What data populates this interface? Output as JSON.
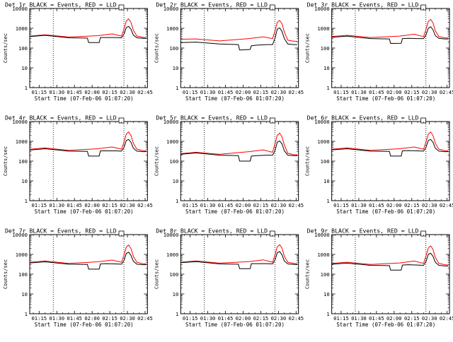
{
  "x_tick_labels": [
    "01:15",
    "01:30",
    "01:45",
    "02:00",
    "02:15",
    "02:30",
    "02:45"
  ],
  "x_axis_label": "Start Time (07-Feb-06 01:07:20)",
  "y_axis_label": "Counts/sec",
  "y_tick_labels": [
    "1",
    "10",
    "100",
    "1000",
    "10000"
  ],
  "legend_box": "□",
  "colors": {
    "events": "#000000",
    "lld": "#ff0000"
  },
  "chart_data": [
    {
      "type": "line",
      "title": "Det 1r BLACK = Events, RED = LLD",
      "xlabel": "Start Time (07-Feb-06 01:07:20)",
      "ylabel": "Counts/sec",
      "y_scale": "log",
      "ylim": [
        1,
        10000
      ],
      "x_range": [
        "01:07",
        "02:47"
      ],
      "vlines": [
        "01:27",
        "02:27"
      ],
      "series": [
        {
          "x": [
            "01:07",
            "01:20",
            "01:40",
            "01:56",
            "01:57",
            "02:06",
            "02:07",
            "02:12",
            "02:20",
            "02:25",
            "02:27",
            "02:29",
            "02:31",
            "02:33",
            "02:35",
            "02:38",
            "02:43",
            "02:46"
          ],
          "y": [
            380,
            440,
            330,
            320,
            190,
            190,
            340,
            340,
            340,
            330,
            500,
            1100,
            1250,
            900,
            450,
            330,
            310,
            310
          ]
        },
        {
          "x": [
            "01:07",
            "01:20",
            "01:40",
            "02:05",
            "02:17",
            "02:25",
            "02:27",
            "02:29",
            "02:31",
            "02:33",
            "02:35",
            "02:38",
            "02:43",
            "02:46"
          ],
          "y": [
            400,
            470,
            360,
            420,
            520,
            400,
            900,
            2300,
            3000,
            2000,
            800,
            400,
            350,
            330
          ]
        }
      ]
    },
    {
      "type": "line",
      "title": "Det 2r BLACK = Events, RED = LLD",
      "xlabel": "Start Time (07-Feb-06 01:07:20)",
      "ylabel": "Counts/sec",
      "y_scale": "log",
      "ylim": [
        1,
        10000
      ],
      "x_range": [
        "01:07",
        "02:47"
      ],
      "vlines": [
        "01:27",
        "02:27"
      ],
      "series": [
        {
          "x": [
            "01:07",
            "01:20",
            "01:40",
            "01:56",
            "01:57",
            "02:06",
            "02:07",
            "02:12",
            "02:20",
            "02:25",
            "02:27",
            "02:29",
            "02:31",
            "02:33",
            "02:35",
            "02:38",
            "02:43",
            "02:46"
          ],
          "y": [
            190,
            200,
            160,
            150,
            80,
            85,
            130,
            140,
            150,
            150,
            300,
            900,
            1050,
            700,
            300,
            160,
            150,
            150
          ]
        },
        {
          "x": [
            "01:07",
            "01:20",
            "01:40",
            "02:05",
            "02:17",
            "02:25",
            "02:27",
            "02:29",
            "02:31",
            "02:33",
            "02:35",
            "02:38",
            "02:43",
            "02:46"
          ],
          "y": [
            280,
            290,
            230,
            300,
            370,
            300,
            700,
            2000,
            2500,
            1700,
            650,
            250,
            220,
            220
          ]
        }
      ]
    },
    {
      "type": "line",
      "title": "Det 3r BLACK = Events, RED = LLD",
      "xlabel": "Start Time (07-Feb-06 01:07:20)",
      "ylabel": "Counts/sec",
      "y_scale": "log",
      "ylim": [
        1,
        10000
      ],
      "x_range": [
        "01:07",
        "02:47"
      ],
      "vlines": [
        "01:27",
        "02:27"
      ],
      "series": [
        {
          "x": [
            "01:07",
            "01:20",
            "01:40",
            "01:56",
            "01:57",
            "02:06",
            "02:07",
            "02:12",
            "02:20",
            "02:25",
            "02:27",
            "02:29",
            "02:31",
            "02:33",
            "02:35",
            "02:38",
            "02:43",
            "02:46"
          ],
          "y": [
            350,
            400,
            300,
            290,
            170,
            175,
            300,
            310,
            300,
            300,
            450,
            1000,
            1200,
            850,
            420,
            310,
            290,
            290
          ]
        },
        {
          "x": [
            "01:07",
            "01:20",
            "01:40",
            "02:05",
            "02:17",
            "02:25",
            "02:27",
            "02:29",
            "02:31",
            "02:33",
            "02:35",
            "02:38",
            "02:43",
            "02:46"
          ],
          "y": [
            380,
            440,
            340,
            400,
            500,
            380,
            850,
            2200,
            2800,
            1900,
            750,
            380,
            330,
            320
          ]
        }
      ]
    },
    {
      "type": "line",
      "title": "Det 4r BLACK = Events, RED = LLD",
      "xlabel": "Start Time (07-Feb-06 01:07:20)",
      "ylabel": "Counts/sec",
      "y_scale": "log",
      "ylim": [
        1,
        10000
      ],
      "x_range": [
        "01:07",
        "02:47"
      ],
      "vlines": [
        "01:27",
        "02:27"
      ],
      "series": [
        {
          "x": [
            "01:07",
            "01:20",
            "01:40",
            "01:56",
            "01:57",
            "02:06",
            "02:07",
            "02:12",
            "02:20",
            "02:25",
            "02:27",
            "02:29",
            "02:31",
            "02:33",
            "02:35",
            "02:38",
            "02:43",
            "02:46"
          ],
          "y": [
            360,
            420,
            320,
            310,
            180,
            180,
            330,
            330,
            330,
            320,
            480,
            1100,
            1250,
            900,
            450,
            320,
            300,
            300
          ]
        },
        {
          "x": [
            "01:07",
            "01:20",
            "01:40",
            "02:05",
            "02:17",
            "02:25",
            "02:27",
            "02:29",
            "02:31",
            "02:33",
            "02:35",
            "02:38",
            "02:43",
            "02:46"
          ],
          "y": [
            400,
            460,
            350,
            420,
            520,
            400,
            900,
            2300,
            3000,
            2000,
            800,
            400,
            340,
            330
          ]
        }
      ]
    },
    {
      "type": "line",
      "title": "Det 5r BLACK = Events, RED = LLD",
      "xlabel": "Start Time (07-Feb-06 01:07:20)",
      "ylabel": "Counts/sec",
      "y_scale": "log",
      "ylim": [
        1,
        10000
      ],
      "x_range": [
        "01:07",
        "02:47"
      ],
      "vlines": [
        "01:27",
        "02:27"
      ],
      "series": [
        {
          "x": [
            "01:07",
            "01:20",
            "01:40",
            "01:56",
            "01:57",
            "02:06",
            "02:07",
            "02:12",
            "02:20",
            "02:25",
            "02:27",
            "02:29",
            "02:31",
            "02:33",
            "02:35",
            "02:38",
            "02:43",
            "02:46"
          ],
          "y": [
            220,
            260,
            200,
            190,
            100,
            100,
            180,
            190,
            200,
            200,
            330,
            900,
            1050,
            750,
            330,
            200,
            190,
            190
          ]
        },
        {
          "x": [
            "01:07",
            "01:20",
            "01:40",
            "02:05",
            "02:17",
            "02:25",
            "02:27",
            "02:29",
            "02:31",
            "02:33",
            "02:35",
            "02:38",
            "02:43",
            "02:46"
          ],
          "y": [
            240,
            280,
            220,
            300,
            370,
            280,
            700,
            2000,
            2600,
            1700,
            650,
            250,
            210,
            210
          ]
        }
      ]
    },
    {
      "type": "line",
      "title": "Det 6r BLACK = Events, RED = LLD",
      "xlabel": "Start Time (07-Feb-06 01:07:20)",
      "ylabel": "Counts/sec",
      "y_scale": "log",
      "ylim": [
        1,
        10000
      ],
      "x_range": [
        "01:07",
        "02:47"
      ],
      "vlines": [
        "01:27",
        "02:27"
      ],
      "series": [
        {
          "x": [
            "01:07",
            "01:20",
            "01:40",
            "01:56",
            "01:57",
            "02:06",
            "02:07",
            "02:12",
            "02:20",
            "02:25",
            "02:27",
            "02:29",
            "02:31",
            "02:33",
            "02:35",
            "02:38",
            "02:43",
            "02:46"
          ],
          "y": [
            370,
            420,
            320,
            310,
            180,
            180,
            330,
            340,
            330,
            320,
            480,
            1100,
            1250,
            900,
            450,
            320,
            300,
            300
          ]
        },
        {
          "x": [
            "01:07",
            "01:20",
            "01:40",
            "02:05",
            "02:17",
            "02:25",
            "02:27",
            "02:29",
            "02:31",
            "02:33",
            "02:35",
            "02:38",
            "02:43",
            "02:46"
          ],
          "y": [
            400,
            460,
            350,
            420,
            520,
            400,
            900,
            2300,
            3000,
            2000,
            800,
            400,
            340,
            330
          ]
        }
      ]
    },
    {
      "type": "line",
      "title": "Det 7r BLACK = Events, RED = LLD",
      "xlabel": "Start Time (07-Feb-06 01:07:20)",
      "ylabel": "Counts/sec",
      "y_scale": "log",
      "ylim": [
        1,
        10000
      ],
      "x_range": [
        "01:07",
        "02:47"
      ],
      "vlines": [
        "01:27",
        "02:27"
      ],
      "series": [
        {
          "x": [
            "01:07",
            "01:20",
            "01:40",
            "01:56",
            "01:57",
            "02:06",
            "02:07",
            "02:12",
            "02:20",
            "02:25",
            "02:27",
            "02:29",
            "02:31",
            "02:33",
            "02:35",
            "02:38",
            "02:43",
            "02:46"
          ],
          "y": [
            370,
            420,
            320,
            310,
            180,
            180,
            330,
            340,
            330,
            320,
            480,
            1100,
            1300,
            900,
            450,
            320,
            300,
            300
          ]
        },
        {
          "x": [
            "01:07",
            "01:20",
            "01:40",
            "02:05",
            "02:17",
            "02:25",
            "02:27",
            "02:29",
            "02:31",
            "02:33",
            "02:35",
            "02:38",
            "02:43",
            "02:46"
          ],
          "y": [
            400,
            460,
            350,
            420,
            520,
            400,
            900,
            2300,
            3000,
            2000,
            800,
            400,
            340,
            330
          ]
        }
      ]
    },
    {
      "type": "line",
      "title": "Det 8r BLACK = Events, RED = LLD",
      "xlabel": "Start Time (07-Feb-06 01:07:20)",
      "ylabel": "Counts/sec",
      "y_scale": "log",
      "ylim": [
        1,
        10000
      ],
      "x_range": [
        "01:07",
        "02:47"
      ],
      "vlines": [
        "01:27",
        "02:27"
      ],
      "series": [
        {
          "x": [
            "01:07",
            "01:20",
            "01:40",
            "01:56",
            "01:57",
            "02:06",
            "02:07",
            "02:12",
            "02:20",
            "02:25",
            "02:27",
            "02:29",
            "02:31",
            "02:33",
            "02:35",
            "02:38",
            "02:43",
            "02:46"
          ],
          "y": [
            380,
            430,
            330,
            320,
            190,
            190,
            340,
            340,
            340,
            330,
            500,
            1200,
            1400,
            950,
            460,
            330,
            310,
            310
          ]
        },
        {
          "x": [
            "01:07",
            "01:20",
            "01:40",
            "02:05",
            "02:17",
            "02:25",
            "02:27",
            "02:29",
            "02:31",
            "02:33",
            "02:35",
            "02:38",
            "02:43",
            "02:46"
          ],
          "y": [
            400,
            470,
            360,
            430,
            530,
            400,
            900,
            2400,
            3100,
            2100,
            800,
            400,
            350,
            330
          ]
        }
      ]
    },
    {
      "type": "line",
      "title": "Det 9r BLACK = Events, RED = LLD",
      "xlabel": "Start Time (07-Feb-06 01:07:20)",
      "ylabel": "Counts/sec",
      "y_scale": "log",
      "ylim": [
        1,
        10000
      ],
      "x_range": [
        "01:07",
        "02:47"
      ],
      "vlines": [
        "01:27",
        "02:27"
      ],
      "series": [
        {
          "x": [
            "01:07",
            "01:20",
            "01:40",
            "01:56",
            "01:57",
            "02:06",
            "02:07",
            "02:12",
            "02:20",
            "02:25",
            "02:27",
            "02:29",
            "02:31",
            "02:33",
            "02:35",
            "02:38",
            "02:43",
            "02:46"
          ],
          "y": [
            320,
            360,
            280,
            270,
            160,
            160,
            290,
            300,
            290,
            280,
            420,
            1000,
            1150,
            800,
            400,
            280,
            260,
            260
          ]
        },
        {
          "x": [
            "01:07",
            "01:20",
            "01:40",
            "02:05",
            "02:17",
            "02:25",
            "02:27",
            "02:29",
            "02:31",
            "02:33",
            "02:35",
            "02:38",
            "02:43",
            "02:46"
          ],
          "y": [
            350,
            400,
            310,
            370,
            460,
            350,
            800,
            2100,
            2700,
            1800,
            700,
            350,
            300,
            290
          ]
        }
      ]
    }
  ]
}
